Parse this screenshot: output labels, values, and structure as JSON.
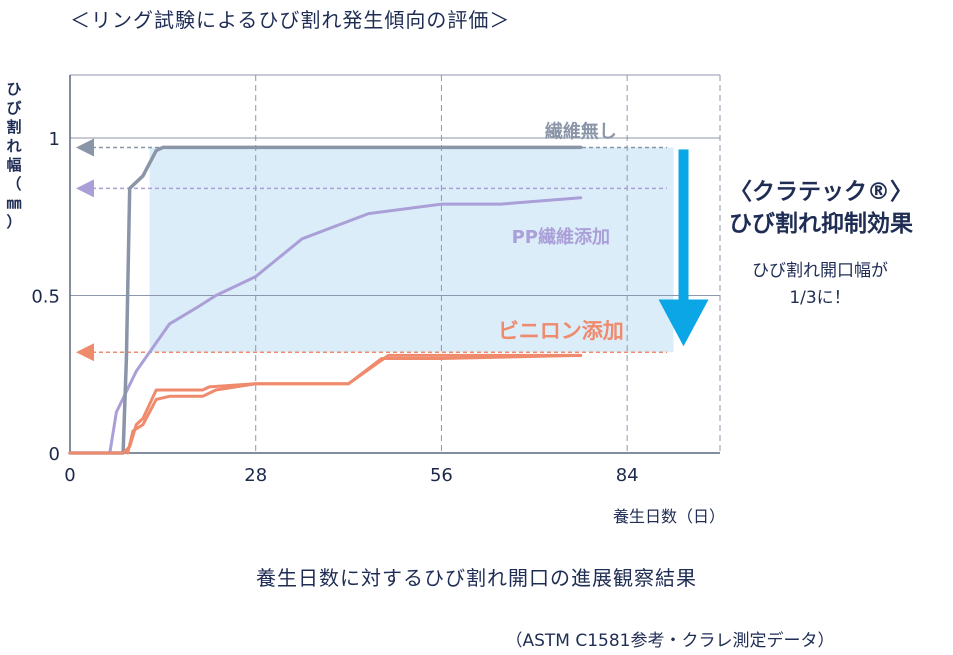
{
  "title": "＜リング試験によるひび割れ発生傾向の評価＞",
  "y_label_chars": [
    "ひ",
    "び",
    "割",
    "れ",
    "幅",
    "（",
    "㎜",
    "）"
  ],
  "x_axis_title": "養生日数（日）",
  "effect": {
    "title_line1": "〈クラテック®〉",
    "title_line2": "ひび割れ抑制効果",
    "sub_line1": "ひび割れ開口幅が",
    "sub_line2": "1/3に！"
  },
  "caption": "養生日数に対するひび割れ開口の進展観察結果",
  "source": "（ASTM C1581参考・クラレ測定データ）",
  "colors": {
    "no_fiber": "#8a95a8",
    "pp_fiber": "#ab9fd8",
    "vinylon": "#ef8a6c",
    "arrow": "#0aa6e6",
    "shade": "#dcedfa",
    "grid": "#8d97ad",
    "text": "#1f2d55"
  },
  "chart_data": {
    "type": "line",
    "title": "＜リング試験によるひび割れ発生傾向の評価＞",
    "xlabel": "養生日数（日）",
    "ylabel": "ひび割れ幅（㎜）",
    "xlim": [
      0,
      98
    ],
    "ylim": [
      0,
      1.2
    ],
    "x_ticks": [
      0,
      28,
      56,
      84
    ],
    "y_ticks": [
      0,
      0.5,
      1
    ],
    "y_tick_labels": [
      "0",
      "0.5",
      "1"
    ],
    "grid": true,
    "series": [
      {
        "name": "繊維無し",
        "color": "#8a95a8",
        "points": [
          [
            0,
            0
          ],
          [
            8,
            0
          ],
          [
            8.5,
            0.3
          ],
          [
            9,
            0.84
          ],
          [
            11,
            0.88
          ],
          [
            13,
            0.96
          ],
          [
            14,
            0.97
          ],
          [
            20,
            0.97
          ],
          [
            30,
            0.97
          ],
          [
            50,
            0.97
          ],
          [
            77,
            0.97
          ]
        ],
        "level": 0.97
      },
      {
        "name": "PP繊維添加",
        "color": "#ab9fd8",
        "points": [
          [
            0,
            0
          ],
          [
            6,
            0
          ],
          [
            7,
            0.13
          ],
          [
            10,
            0.26
          ],
          [
            15,
            0.41
          ],
          [
            19,
            0.46
          ],
          [
            22,
            0.5
          ],
          [
            28,
            0.56
          ],
          [
            35,
            0.68
          ],
          [
            45,
            0.76
          ],
          [
            56,
            0.79
          ],
          [
            65,
            0.79
          ],
          [
            77,
            0.81
          ]
        ],
        "level": 0.84
      },
      {
        "name": "ビニロン添加",
        "color": "#ef8a6c",
        "points": [
          [
            0,
            0
          ],
          [
            8,
            0
          ],
          [
            9,
            0.02
          ],
          [
            10,
            0.09
          ],
          [
            11,
            0.11
          ],
          [
            13,
            0.2
          ],
          [
            15,
            0.2
          ],
          [
            20,
            0.2
          ],
          [
            21,
            0.21
          ],
          [
            28,
            0.22
          ],
          [
            35,
            0.22
          ],
          [
            42,
            0.22
          ],
          [
            48,
            0.31
          ],
          [
            56,
            0.31
          ],
          [
            77,
            0.31
          ]
        ],
        "points_b": [
          [
            8.7,
            0
          ],
          [
            9.5,
            0.07
          ],
          [
            11,
            0.09
          ],
          [
            13,
            0.17
          ],
          [
            15,
            0.18
          ],
          [
            20,
            0.18
          ],
          [
            22,
            0.2
          ],
          [
            28,
            0.22
          ],
          [
            42,
            0.22
          ],
          [
            47,
            0.3
          ],
          [
            56,
            0.3
          ],
          [
            77,
            0.31
          ]
        ],
        "level": 0.32
      }
    ],
    "annotation": "ひび割れ開口幅が1/3に！"
  }
}
